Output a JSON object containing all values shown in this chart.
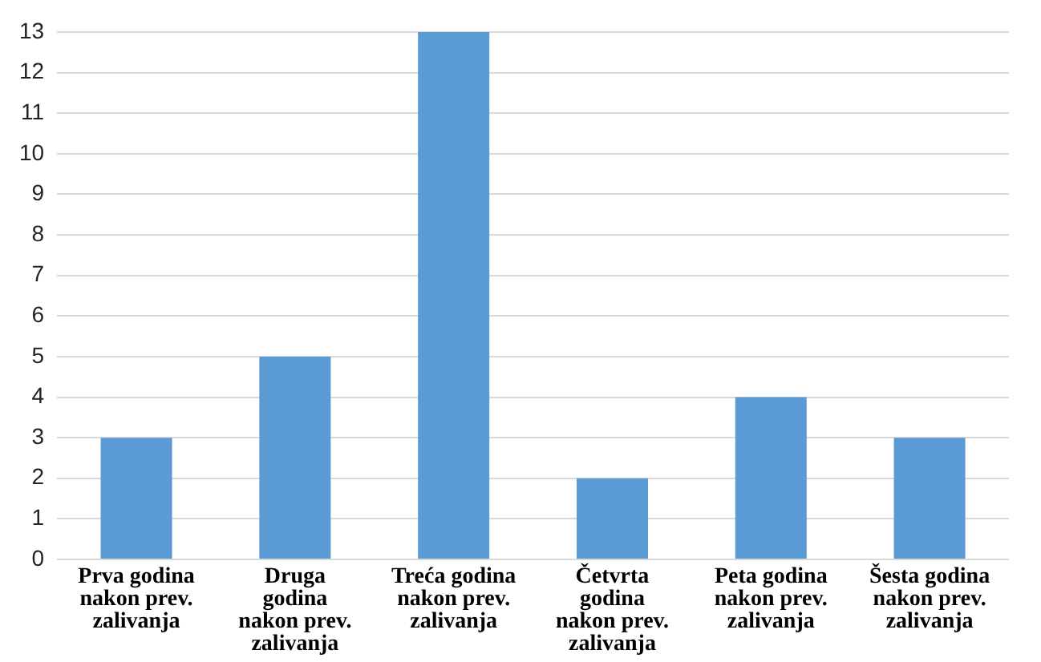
{
  "chart_data": {
    "type": "bar",
    "categories": [
      "Prva godina nakon prev. zalivanja",
      "Druga godina nakon prev. zalivanja",
      "Treća godina nakon prev. zalivanja",
      "Četvrta godina nakon prev. zalivanja",
      "Peta godina nakon prev. zalivanja",
      "Šesta godina nakon prev. zalivanja"
    ],
    "values": [
      3,
      5,
      13,
      2,
      4,
      3
    ],
    "color": "#5b9bd5",
    "ylim": [
      0,
      13
    ],
    "yticks": [
      0,
      1,
      2,
      3,
      4,
      5,
      6,
      7,
      8,
      9,
      10,
      11,
      12,
      13
    ],
    "grid": "y"
  }
}
